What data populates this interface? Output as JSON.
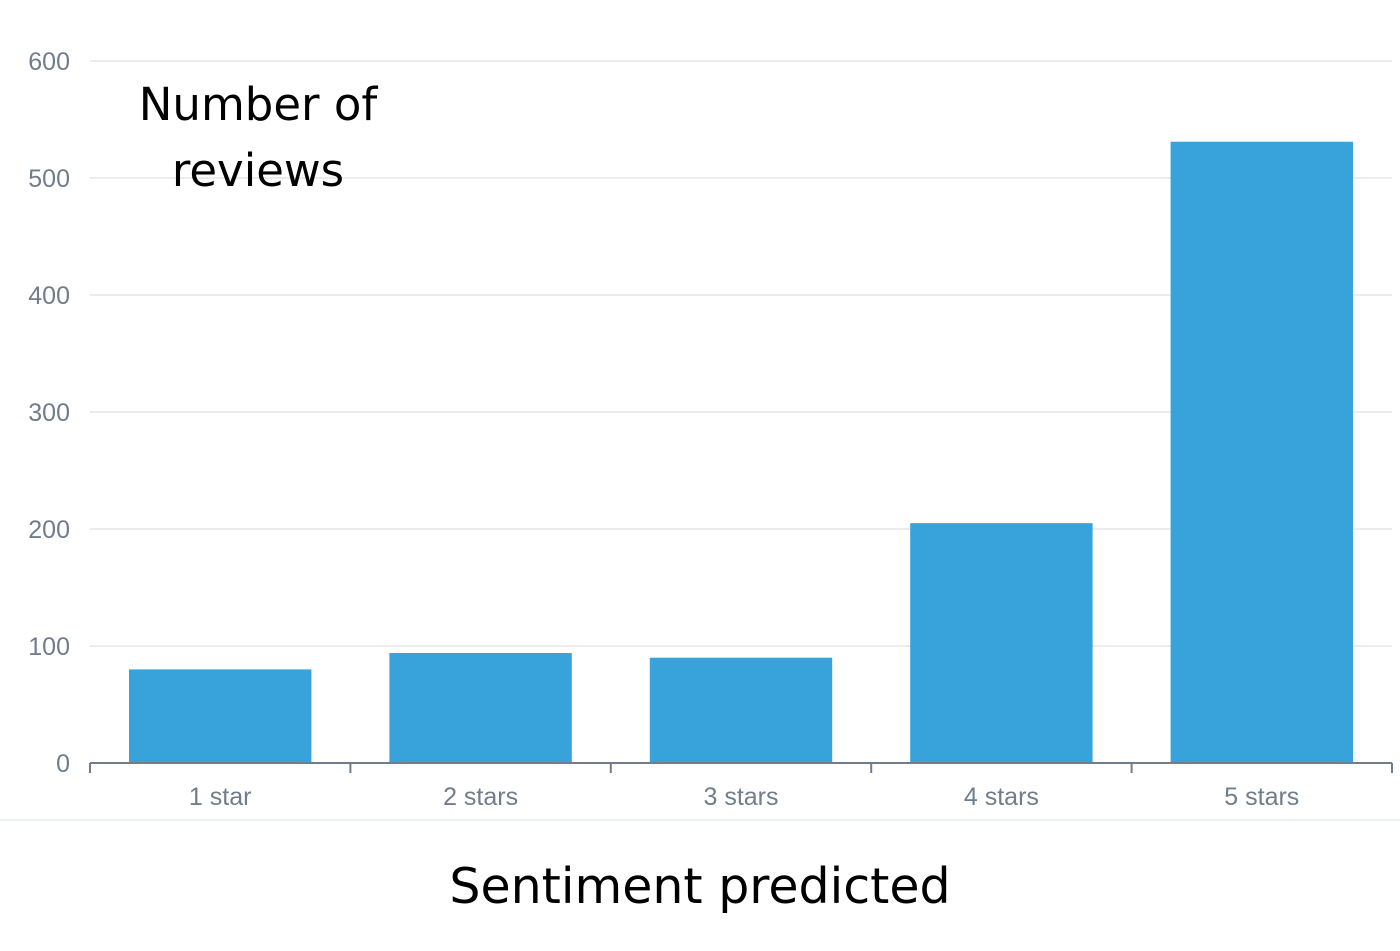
{
  "chart_data": {
    "type": "bar",
    "categories": [
      "1 star",
      "2 stars",
      "3 stars",
      "4 stars",
      "5 stars"
    ],
    "values": [
      80,
      94,
      90,
      205,
      531
    ],
    "title": "",
    "xlabel": "Sentiment predicted",
    "ylabel_lines": [
      "Number of",
      "reviews"
    ],
    "ylim": [
      0,
      600
    ],
    "yticks": [
      0,
      100,
      200,
      300,
      400,
      500,
      600
    ],
    "ytick_labels": [
      "0",
      "100",
      "200",
      "300",
      "400",
      "500",
      "600"
    ],
    "grid": "horizontal",
    "legend": "none",
    "colors": {
      "bar": "#38a2da",
      "grid": "#e3e6ec",
      "axis": "#6f7d8c",
      "tick_text": "#6f7d8c",
      "separator": "#eaedf1",
      "title_text": "#000000"
    }
  }
}
